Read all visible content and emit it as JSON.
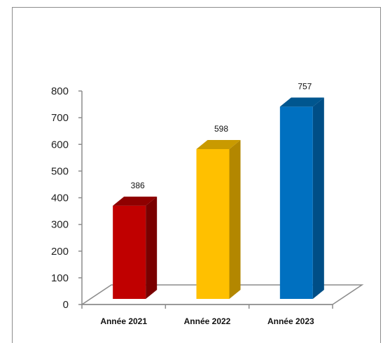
{
  "chart_data": {
    "type": "bar",
    "categories": [
      "Année 2021",
      "Année 2022",
      "Année 2023"
    ],
    "values": [
      386,
      598,
      757
    ],
    "data_labels": [
      "386",
      "598",
      "757"
    ],
    "colors": [
      "#c00000",
      "#ffc000",
      "#0070c0"
    ],
    "side_colors": [
      "#7a0000",
      "#b38700",
      "#004e86"
    ],
    "top_colors": [
      "#8f0000",
      "#c99a00",
      "#00568f"
    ],
    "yticks": [
      "0",
      "100",
      "200",
      "300",
      "400",
      "500",
      "600",
      "700",
      "800"
    ],
    "ylim": [
      0,
      800
    ],
    "title": "",
    "xlabel": "",
    "ylabel": "",
    "grid": false,
    "legend": "none",
    "style": "3d-column"
  }
}
